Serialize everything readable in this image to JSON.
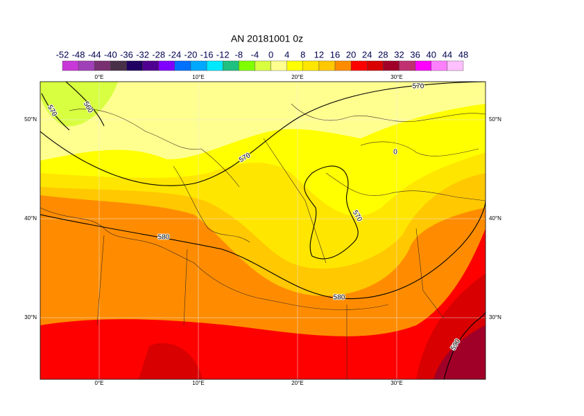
{
  "title": "AN  20181001 0z",
  "colorbar": {
    "labels": [
      -52,
      -48,
      -44,
      -40,
      -36,
      -32,
      -28,
      -24,
      -20,
      -16,
      -12,
      -8,
      -4,
      0,
      4,
      8,
      12,
      16,
      20,
      24,
      28,
      32,
      36,
      40,
      44,
      48
    ],
    "colors": [
      "#c838d8",
      "#a040b8",
      "#783070",
      "#483048",
      "#200060",
      "#500090",
      "#8000ff",
      "#0070ff",
      "#00a8ff",
      "#00e8ff",
      "#20c080",
      "#80ff00",
      "#d8ff40",
      "#ffff90",
      "#ffff00",
      "#ffe600",
      "#ffc800",
      "#ff8c00",
      "#ff0000",
      "#d80000",
      "#a00028",
      "#c03070",
      "#ff00ff",
      "#ff80ff",
      "#ffc0ff"
    ]
  },
  "axes": {
    "lon_labels": [
      "0°E",
      "10°E",
      "20°E",
      "30°E"
    ],
    "lat_labels": [
      "50°N",
      "40°N",
      "30°N"
    ]
  },
  "contour_labels": [
    "570",
    "560",
    "570",
    "570",
    "0",
    "570",
    "580",
    "580",
    "590"
  ]
}
